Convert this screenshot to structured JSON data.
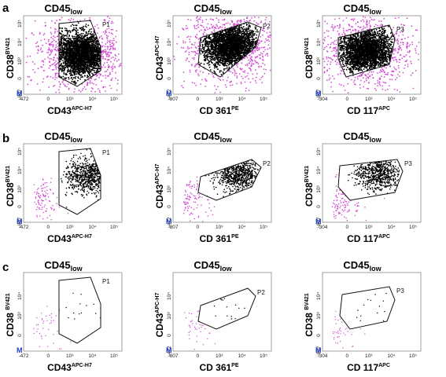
{
  "figure": {
    "rows": [
      {
        "letter": "a",
        "density": "high",
        "plots": [
          {
            "title": "CD45",
            "title_sub": "low",
            "xlabel": "CD43",
            "xlabel_sup": "APC-H7",
            "ylabel": "CD38",
            "ylabel_sup": "BV421",
            "gate": "P1",
            "x_ticks": [
              "-472",
              "0",
              "10³",
              "10⁴",
              "10⁵"
            ],
            "y_ticks": [
              "-807",
              "0",
              "10³",
              "10⁴",
              "10⁵"
            ],
            "m_label": "M"
          },
          {
            "title": "CD45",
            "title_sub": "low",
            "xlabel": "CD 361",
            "xlabel_sup": "PE",
            "ylabel": "CD43",
            "ylabel_sup": "APC-H7",
            "gate": "P2",
            "x_ticks": [
              "-807",
              "0",
              "10³",
              "10⁴",
              "10⁵"
            ],
            "y_ticks": [
              "-472",
              "0",
              "10³",
              "10⁴",
              "10⁵"
            ],
            "m_label": "M"
          },
          {
            "title": "CD45",
            "title_sub": "low",
            "xlabel": "CD 117",
            "xlabel_sup": "APC",
            "ylabel": "CD38",
            "ylabel_sup": "BV421",
            "gate": "P3",
            "x_ticks": [
              "-304",
              "0",
              "10³",
              "10⁴",
              "10⁵"
            ],
            "y_ticks": [
              "-807",
              "0",
              "10³",
              "10⁴",
              "10⁵"
            ],
            "m_label": "M"
          }
        ]
      },
      {
        "letter": "b",
        "density": "medium",
        "plots": [
          {
            "title": "CD45",
            "title_sub": "low",
            "xlabel": "CD43",
            "xlabel_sup": "APC-H7",
            "ylabel": "CD38",
            "ylabel_sup": "BV421",
            "gate": "P1",
            "x_ticks": [
              "-472",
              "0",
              "10³",
              "10⁴",
              "10⁵"
            ],
            "y_ticks": [
              "-807",
              "0",
              "10³",
              "10⁴",
              "10⁵"
            ],
            "m_label": "M"
          },
          {
            "title": "CD45",
            "title_sub": "low",
            "xlabel": "CD 361",
            "xlabel_sup": "PE",
            "ylabel": "CD43",
            "ylabel_sup": "APC-H7",
            "gate": "P2",
            "x_ticks": [
              "-807",
              "0",
              "10³",
              "10⁴",
              "10⁵"
            ],
            "y_ticks": [
              "-472",
              "0",
              "10³",
              "10⁴",
              "10⁵"
            ],
            "m_label": "M"
          },
          {
            "title": "CD45",
            "title_sub": "low",
            "xlabel": "CD 117",
            "xlabel_sup": "APC",
            "ylabel": "CD38",
            "ylabel_sup": "BV421",
            "gate": "P3",
            "x_ticks": [
              "-304",
              "0",
              "10³",
              "10⁴",
              "10⁵"
            ],
            "y_ticks": [
              "-807",
              "0",
              "10³",
              "10⁴",
              "10⁵"
            ],
            "m_label": "M"
          }
        ]
      },
      {
        "letter": "c",
        "density": "sparse",
        "plots": [
          {
            "title": "CD45",
            "title_sub": "low",
            "xlabel": "CD43",
            "xlabel_sup": "APC-H7",
            "ylabel": "CD38 ",
            "ylabel_sup": "BV421",
            "gate": "P1",
            "x_ticks": [
              "-472",
              "0",
              "10³",
              "10⁴",
              "10⁵"
            ],
            "y_ticks": [
              "0",
              "10³",
              "10⁴"
            ],
            "m_label": "M"
          },
          {
            "title": "CD45",
            "title_sub": "low",
            "xlabel": "CD 361",
            "xlabel_sup": "PE",
            "ylabel": "CD43",
            "ylabel_sup": "APC-H7",
            "gate": "P2",
            "x_ticks": [
              "-807",
              "0",
              "10³",
              "10⁴",
              "10⁵"
            ],
            "y_ticks": [
              "-472",
              "0",
              "10³",
              "10⁴"
            ],
            "m_label": "M"
          },
          {
            "title": "CD45",
            "title_sub": "low",
            "xlabel": "CD 117",
            "xlabel_sup": "APC",
            "ylabel": "CD38 ",
            "ylabel_sup": "BV421",
            "gate": "P3",
            "x_ticks": [
              "-304",
              "0",
              "10³",
              "10⁴",
              "10⁵"
            ],
            "y_ticks": [
              "-807",
              "0",
              "10³",
              "10⁴"
            ],
            "m_label": "M"
          }
        ]
      }
    ]
  },
  "chart_data": {
    "type": "scatter",
    "axis_scale": "biexponential",
    "grid": false,
    "colors": {
      "gated_events": "#000000",
      "ungated_events": "#cc33cc",
      "m_marker": "#1f3fbf"
    },
    "panels": [
      "a",
      "b",
      "c"
    ]
  }
}
